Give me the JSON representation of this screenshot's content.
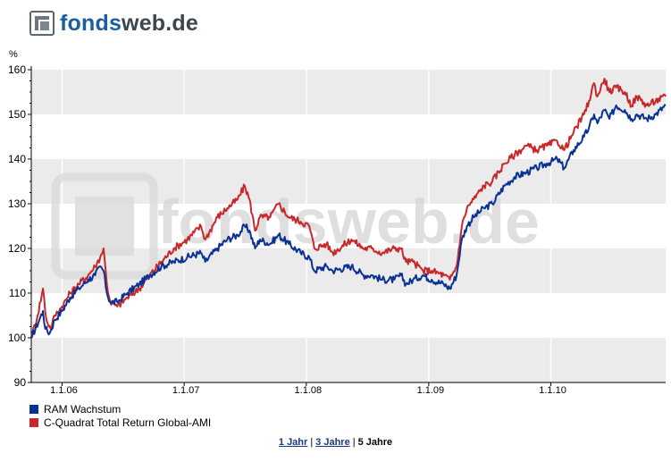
{
  "brand": {
    "part1": "fonds",
    "part2": "web.de",
    "watermark": "fondsweb.de"
  },
  "chart_data": {
    "type": "line",
    "ylabel": "%",
    "ylim": [
      90,
      160
    ],
    "yticks": [
      90,
      100,
      110,
      120,
      130,
      140,
      150,
      160
    ],
    "xlim": [
      "2005-10-01",
      "2010-12-10"
    ],
    "xticks": [
      {
        "date": "2006-01-01",
        "label": "1.1.06"
      },
      {
        "date": "2007-01-01",
        "label": "1.1.07"
      },
      {
        "date": "2008-01-01",
        "label": "1.1.08"
      },
      {
        "date": "2009-01-01",
        "label": "1.1.09"
      },
      {
        "date": "2010-01-01",
        "label": "1.1.10"
      }
    ],
    "series": [
      {
        "name": "RAM Wachstum",
        "color": "#0a3294",
        "points": [
          [
            "2005-10-01",
            100
          ],
          [
            "2005-10-25",
            104
          ],
          [
            "2005-11-05",
            106
          ],
          [
            "2005-11-12",
            102
          ],
          [
            "2005-11-25",
            101
          ],
          [
            "2005-12-10",
            104
          ],
          [
            "2006-01-01",
            106
          ],
          [
            "2006-01-25",
            109
          ],
          [
            "2006-02-20",
            111
          ],
          [
            "2006-03-20",
            113
          ],
          [
            "2006-04-10",
            114
          ],
          [
            "2006-04-25",
            116
          ],
          [
            "2006-05-05",
            115
          ],
          [
            "2006-05-15",
            110
          ],
          [
            "2006-05-25",
            108
          ],
          [
            "2006-06-15",
            108
          ],
          [
            "2006-07-15",
            110
          ],
          [
            "2006-08-20",
            112
          ],
          [
            "2006-09-20",
            114
          ],
          [
            "2006-10-25",
            116
          ],
          [
            "2006-12-01",
            117
          ],
          [
            "2007-01-10",
            118
          ],
          [
            "2007-02-20",
            119
          ],
          [
            "2007-03-05",
            117
          ],
          [
            "2007-04-10",
            120
          ],
          [
            "2007-05-10",
            122
          ],
          [
            "2007-06-10",
            123
          ],
          [
            "2007-07-01",
            125
          ],
          [
            "2007-07-15",
            124
          ],
          [
            "2007-08-01",
            120
          ],
          [
            "2007-08-15",
            122
          ],
          [
            "2007-09-15",
            121
          ],
          [
            "2007-10-10",
            123
          ],
          [
            "2007-11-10",
            121
          ],
          [
            "2007-12-15",
            119
          ],
          [
            "2008-01-10",
            118
          ],
          [
            "2008-01-25",
            115
          ],
          [
            "2008-03-01",
            116
          ],
          [
            "2008-03-20",
            115
          ],
          [
            "2008-05-15",
            116
          ],
          [
            "2008-06-20",
            114
          ],
          [
            "2008-07-15",
            114
          ],
          [
            "2008-08-15",
            113
          ],
          [
            "2008-09-20",
            113
          ],
          [
            "2008-10-10",
            114
          ],
          [
            "2008-10-25",
            112
          ],
          [
            "2008-11-15",
            113
          ],
          [
            "2008-12-15",
            114
          ],
          [
            "2009-01-10",
            113
          ],
          [
            "2009-02-15",
            112
          ],
          [
            "2009-03-05",
            111
          ],
          [
            "2009-03-25",
            114
          ],
          [
            "2009-04-10",
            122
          ],
          [
            "2009-04-25",
            125
          ],
          [
            "2009-05-15",
            127
          ],
          [
            "2009-06-15",
            129
          ],
          [
            "2009-07-10",
            130
          ],
          [
            "2009-08-15",
            134
          ],
          [
            "2009-09-15",
            136
          ],
          [
            "2009-10-20",
            137
          ],
          [
            "2009-11-20",
            138
          ],
          [
            "2009-12-20",
            139
          ],
          [
            "2010-01-20",
            140
          ],
          [
            "2010-02-10",
            138
          ],
          [
            "2010-03-10",
            142
          ],
          [
            "2010-04-10",
            145
          ],
          [
            "2010-04-25",
            147
          ],
          [
            "2010-05-10",
            150
          ],
          [
            "2010-05-20",
            148
          ],
          [
            "2010-06-10",
            151
          ],
          [
            "2010-06-25",
            149
          ],
          [
            "2010-07-15",
            152
          ],
          [
            "2010-08-10",
            151
          ],
          [
            "2010-08-30",
            149
          ],
          [
            "2010-09-15",
            150
          ],
          [
            "2010-10-15",
            149
          ],
          [
            "2010-11-10",
            150
          ],
          [
            "2010-12-10",
            152
          ]
        ]
      },
      {
        "name": "C-Quadrat Total Return Global-AMI",
        "color": "#c8282a",
        "points": [
          [
            "2005-10-01",
            100
          ],
          [
            "2005-10-20",
            105
          ],
          [
            "2005-11-05",
            111
          ],
          [
            "2005-11-15",
            104
          ],
          [
            "2005-11-28",
            102
          ],
          [
            "2005-12-10",
            105
          ],
          [
            "2006-01-01",
            107
          ],
          [
            "2006-01-25",
            110
          ],
          [
            "2006-02-20",
            112
          ],
          [
            "2006-03-20",
            114
          ],
          [
            "2006-04-10",
            116
          ],
          [
            "2006-04-25",
            118
          ],
          [
            "2006-05-05",
            120
          ],
          [
            "2006-05-15",
            112
          ],
          [
            "2006-05-25",
            108
          ],
          [
            "2006-06-15",
            107
          ],
          [
            "2006-07-15",
            109
          ],
          [
            "2006-08-20",
            111
          ],
          [
            "2006-09-20",
            114
          ],
          [
            "2006-10-25",
            117
          ],
          [
            "2006-12-01",
            120
          ],
          [
            "2007-01-10",
            122
          ],
          [
            "2007-02-20",
            125
          ],
          [
            "2007-03-05",
            122
          ],
          [
            "2007-04-10",
            127
          ],
          [
            "2007-05-10",
            129
          ],
          [
            "2007-06-10",
            131
          ],
          [
            "2007-07-01",
            134
          ],
          [
            "2007-07-15",
            131
          ],
          [
            "2007-08-01",
            124
          ],
          [
            "2007-08-15",
            127
          ],
          [
            "2007-09-15",
            127
          ],
          [
            "2007-10-10",
            130
          ],
          [
            "2007-11-10",
            127
          ],
          [
            "2007-12-15",
            126
          ],
          [
            "2008-01-10",
            125
          ],
          [
            "2008-01-25",
            120
          ],
          [
            "2008-03-01",
            121
          ],
          [
            "2008-03-20",
            119
          ],
          [
            "2008-05-15",
            122
          ],
          [
            "2008-06-20",
            120
          ],
          [
            "2008-07-15",
            120
          ],
          [
            "2008-08-15",
            119
          ],
          [
            "2008-09-20",
            120
          ],
          [
            "2008-10-10",
            120
          ],
          [
            "2008-10-25",
            117
          ],
          [
            "2008-11-15",
            117
          ],
          [
            "2008-12-15",
            115
          ],
          [
            "2009-01-10",
            115
          ],
          [
            "2009-02-15",
            114
          ],
          [
            "2009-03-05",
            113
          ],
          [
            "2009-03-25",
            116
          ],
          [
            "2009-04-10",
            125
          ],
          [
            "2009-04-25",
            129
          ],
          [
            "2009-05-15",
            131
          ],
          [
            "2009-06-15",
            134
          ],
          [
            "2009-07-10",
            135
          ],
          [
            "2009-08-15",
            139
          ],
          [
            "2009-09-15",
            141
          ],
          [
            "2009-10-20",
            143
          ],
          [
            "2009-11-20",
            142
          ],
          [
            "2009-12-20",
            143
          ],
          [
            "2010-01-20",
            144
          ],
          [
            "2010-02-10",
            142
          ],
          [
            "2010-03-10",
            146
          ],
          [
            "2010-04-10",
            150
          ],
          [
            "2010-04-25",
            153
          ],
          [
            "2010-05-10",
            157
          ],
          [
            "2010-05-20",
            154
          ],
          [
            "2010-06-10",
            158
          ],
          [
            "2010-06-25",
            155
          ],
          [
            "2010-07-15",
            156
          ],
          [
            "2010-08-10",
            155
          ],
          [
            "2010-08-30",
            152
          ],
          [
            "2010-09-15",
            154
          ],
          [
            "2010-10-15",
            152
          ],
          [
            "2010-11-10",
            153
          ],
          [
            "2010-12-10",
            154
          ]
        ]
      }
    ]
  },
  "legend": [
    {
      "label": "RAM Wachstum",
      "color": "#0a3294"
    },
    {
      "label": "C-Quadrat Total Return Global-AMI",
      "color": "#c8282a"
    }
  ],
  "range_links": [
    {
      "label": "1 Jahr",
      "active": false
    },
    {
      "label": "3 Jahre",
      "active": false
    },
    {
      "label": "5 Jahre",
      "active": true
    }
  ]
}
